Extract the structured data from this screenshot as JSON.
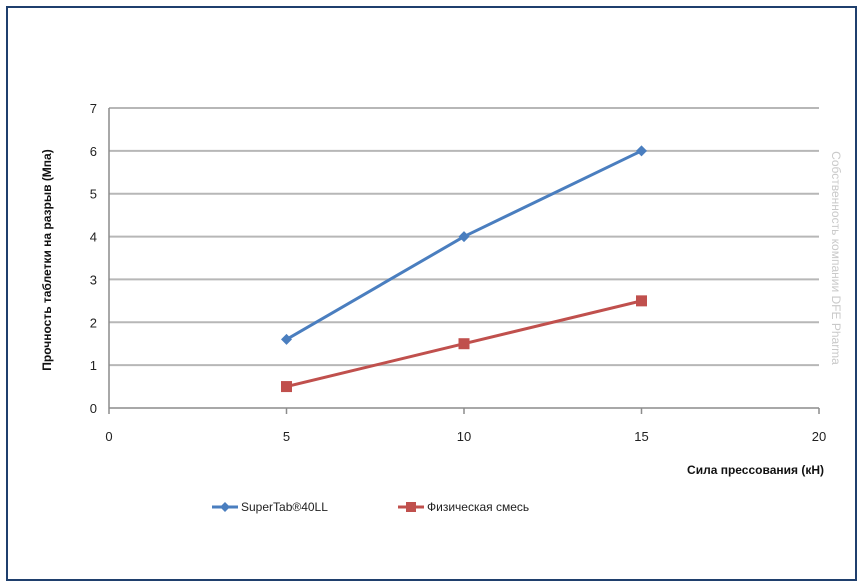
{
  "chart_data": {
    "type": "line",
    "xlabel": "Сила прессования (кН)",
    "ylabel": "Прочность таблетки на разрыв (Мпа)",
    "xlim": [
      0,
      20
    ],
    "ylim": [
      0,
      7
    ],
    "xticks": [
      0,
      5,
      10,
      15,
      20
    ],
    "yticks": [
      0,
      1,
      2,
      3,
      4,
      5,
      6,
      7
    ],
    "grid": "horizontal",
    "legend_position": "bottom",
    "series": [
      {
        "name": "SuperTab®40LL",
        "color": "#4a7ebf",
        "marker": "diamond",
        "x": [
          5,
          10,
          15
        ],
        "y": [
          1.6,
          4.0,
          6.0
        ]
      },
      {
        "name": "Физическая смесь",
        "color": "#c0504d",
        "marker": "square",
        "x": [
          5,
          10,
          15
        ],
        "y": [
          0.5,
          1.5,
          2.5
        ]
      }
    ],
    "watermark": "Собственность компании DFE Pharma"
  }
}
